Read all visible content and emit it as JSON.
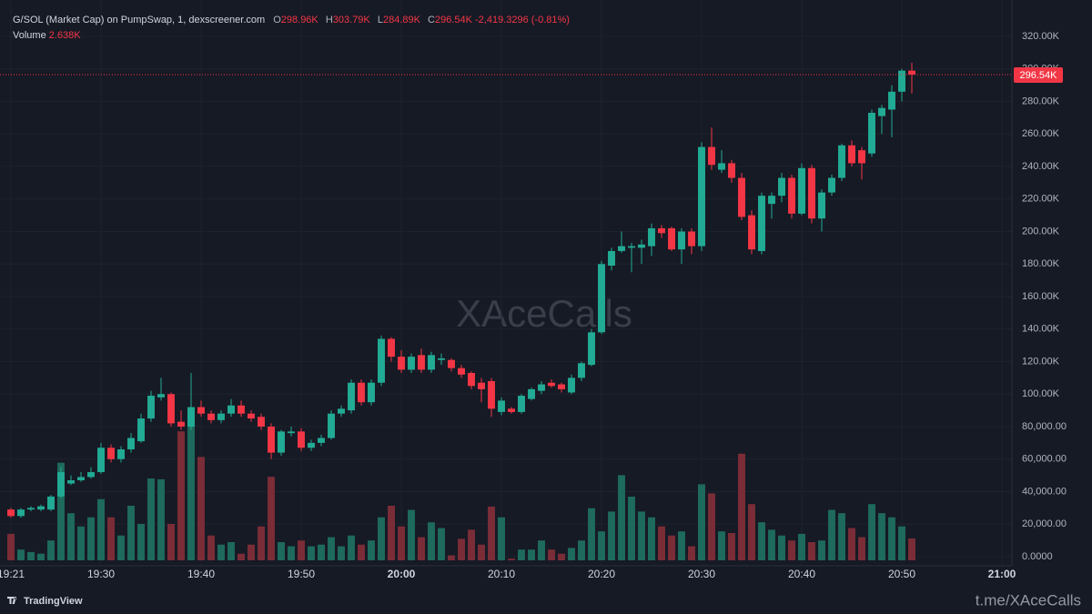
{
  "chart_data": {
    "type": "candlestick",
    "title": "G/SOL (Market Cap) on PumpSwap, 1, dexscreener.com",
    "ohlc_keys": {
      "open": "O",
      "high": "H",
      "low": "L",
      "close": "C"
    },
    "last_labels": {
      "open": "298.96K",
      "high": "303.79K",
      "low": "284.89K",
      "close": "296.54K",
      "volume": "2.638K"
    },
    "change_label": "-2,419.3296 (-0.81%)",
    "volume_title": "Volume",
    "watermark": "XAceCalls",
    "footer_left": "TradingView",
    "footer_right": "t.me/XAceCalls",
    "up_color": "#22ab94",
    "down_color": "#f23645",
    "volume_up_color": "#1e6a5c",
    "volume_down_color": "#7b2d37",
    "grid": true,
    "x": [
      "19:21",
      "19:22",
      "19:23",
      "19:24",
      "19:25",
      "19:26",
      "19:27",
      "19:28",
      "19:29",
      "19:30",
      "19:31",
      "19:32",
      "19:33",
      "19:34",
      "19:35",
      "19:36",
      "19:37",
      "19:38",
      "19:39",
      "19:40",
      "19:41",
      "19:42",
      "19:43",
      "19:44",
      "19:45",
      "19:46",
      "19:47",
      "19:48",
      "19:49",
      "19:50",
      "19:51",
      "19:52",
      "19:53",
      "19:54",
      "19:55",
      "19:56",
      "19:57",
      "19:58",
      "19:59",
      "20:00",
      "20:01",
      "20:02",
      "20:03",
      "20:04",
      "20:05",
      "20:06",
      "20:07",
      "20:08",
      "20:09",
      "20:10",
      "20:11",
      "20:12",
      "20:13",
      "20:14",
      "20:15",
      "20:16",
      "20:17",
      "20:18",
      "20:19",
      "20:20",
      "20:21",
      "20:22",
      "20:23",
      "20:24",
      "20:25",
      "20:26",
      "20:27",
      "20:28",
      "20:29",
      "20:30",
      "20:31",
      "20:32",
      "20:33",
      "20:34",
      "20:35",
      "20:36",
      "20:37",
      "20:38",
      "20:39",
      "20:40",
      "20:41",
      "20:42",
      "20:43",
      "20:44",
      "20:45",
      "20:46",
      "20:47",
      "20:48",
      "20:49",
      "20:50",
      "20:51"
    ],
    "open": [
      29000,
      25000,
      29000,
      29000,
      29000,
      37000,
      45000,
      47000,
      49000,
      52000,
      67000,
      60000,
      66000,
      71000,
      85000,
      98000,
      100000,
      83000,
      80000,
      92000,
      88000,
      84000,
      88000,
      93000,
      88000,
      86000,
      80000,
      64000,
      76000,
      77000,
      67000,
      70000,
      73000,
      88000,
      90000,
      107000,
      95000,
      107000,
      134000,
      123000,
      115000,
      124000,
      115000,
      121000,
      121000,
      116000,
      113000,
      107000,
      108000,
      89000,
      91000,
      89000,
      97000,
      102000,
      107000,
      106000,
      101000,
      110000,
      118000,
      138000,
      179000,
      188000,
      190000,
      190000,
      191000,
      202000,
      202000,
      189000,
      200000,
      191000,
      252000,
      238000,
      242000,
      233000,
      210000,
      188000,
      217000,
      222000,
      233000,
      211000,
      239000,
      208000,
      224000,
      233000,
      253000,
      250000,
      248000,
      271000,
      275000,
      286000,
      298960
    ],
    "high": [
      30000,
      30000,
      31000,
      32000,
      38000,
      55000,
      50000,
      52000,
      55000,
      70000,
      69000,
      68000,
      76000,
      88000,
      102000,
      110000,
      101000,
      90000,
      113000,
      96000,
      90000,
      90000,
      97000,
      96000,
      90000,
      88000,
      82000,
      78000,
      80000,
      79000,
      72000,
      75000,
      90000,
      93000,
      109000,
      109000,
      109000,
      136000,
      135000,
      127000,
      125000,
      128000,
      126000,
      125000,
      122000,
      118000,
      114000,
      110000,
      110000,
      98000,
      92000,
      100000,
      104000,
      108000,
      109000,
      107000,
      112000,
      120000,
      140000,
      182000,
      190000,
      200000,
      193000,
      195000,
      205000,
      204000,
      203000,
      202000,
      202000,
      255000,
      264000,
      250000,
      244000,
      236000,
      213000,
      224000,
      224000,
      236000,
      235000,
      242000,
      241000,
      226000,
      235000,
      254000,
      256000,
      252000,
      275000,
      278000,
      290000,
      300000,
      303790
    ],
    "low": [
      24000,
      24000,
      28000,
      28000,
      28000,
      36000,
      44000,
      46000,
      48000,
      51000,
      58000,
      58000,
      64000,
      70000,
      83000,
      96000,
      80000,
      78000,
      78000,
      86000,
      82000,
      82000,
      86000,
      86000,
      83000,
      78000,
      60000,
      62000,
      74000,
      65000,
      65000,
      68000,
      72000,
      86000,
      88000,
      93000,
      93000,
      105000,
      120000,
      113000,
      113000,
      113000,
      113000,
      118000,
      114000,
      110000,
      103000,
      95000,
      86000,
      87000,
      88000,
      88000,
      96000,
      100000,
      104000,
      101000,
      100000,
      108000,
      117000,
      137000,
      176000,
      187000,
      175000,
      180000,
      185000,
      196000,
      188000,
      180000,
      186000,
      188000,
      238000,
      236000,
      230000,
      207000,
      186000,
      186000,
      208000,
      218000,
      208000,
      210000,
      205000,
      200000,
      222000,
      231000,
      240000,
      232000,
      246000,
      260000,
      258000,
      280000,
      284890
    ],
    "close": [
      25000,
      29000,
      30000,
      31000,
      37000,
      52000,
      47000,
      49000,
      52000,
      67000,
      60000,
      66000,
      73000,
      85000,
      99000,
      100000,
      82000,
      80000,
      92000,
      88000,
      84000,
      88000,
      93000,
      88000,
      85000,
      80000,
      64000,
      77000,
      77000,
      67000,
      70000,
      73000,
      88000,
      91000,
      107000,
      95000,
      107000,
      134000,
      123000,
      115000,
      123000,
      115000,
      124000,
      122000,
      116000,
      112000,
      105000,
      103000,
      91000,
      96000,
      89000,
      99000,
      103000,
      106000,
      105000,
      103000,
      110000,
      119000,
      138000,
      180000,
      188000,
      191000,
      191000,
      192000,
      202000,
      199000,
      189000,
      200000,
      191000,
      252000,
      241000,
      242000,
      233000,
      209000,
      189000,
      222000,
      222000,
      233000,
      211000,
      239000,
      208000,
      224000,
      233000,
      253000,
      242000,
      242000,
      273000,
      276000,
      286000,
      298960,
      296540
    ],
    "volume": [
      3200,
      1300,
      1000,
      800,
      2400,
      11800,
      5700,
      4100,
      5200,
      7400,
      5200,
      3000,
      6600,
      4400,
      9900,
      9800,
      4400,
      15600,
      18200,
      12500,
      3000,
      1900,
      2200,
      800,
      1900,
      4100,
      10100,
      2200,
      1700,
      2400,
      1700,
      1900,
      2800,
      1700,
      3000,
      1900,
      2400,
      5200,
      6600,
      4100,
      6100,
      2800,
      4600,
      3900,
      600,
      2600,
      3700,
      1900,
      6500,
      5200,
      200,
      1300,
      1300,
      2400,
      1300,
      800,
      1500,
      2400,
      6300,
      3500,
      5900,
      10300,
      7700,
      5900,
      5200,
      4100,
      3000,
      3500,
      1700,
      9200,
      8100,
      3500,
      3300,
      12900,
      6800,
      4600,
      3700,
      3000,
      2400,
      3200,
      2200,
      2400,
      6100,
      5700,
      3900,
      2800,
      6800,
      5700,
      5200,
      4100,
      2638
    ],
    "xlim": [
      "19:20",
      "21:01"
    ],
    "xticks": [
      "19:21",
      "19:30",
      "19:40",
      "19:50",
      "20:00",
      "20:10",
      "20:20",
      "20:30",
      "20:40",
      "20:50",
      "21:00"
    ],
    "ylim": [
      -5600,
      342400
    ],
    "yticks": [
      {
        "value": 0,
        "label": "0.0000"
      },
      {
        "value": 20000,
        "label": "20,000.00"
      },
      {
        "value": 40000,
        "label": "40,000.00"
      },
      {
        "value": 60000,
        "label": "60,000.00"
      },
      {
        "value": 80000,
        "label": "80,000.00"
      },
      {
        "value": 100000,
        "label": "100.00K"
      },
      {
        "value": 120000,
        "label": "120.00K"
      },
      {
        "value": 140000,
        "label": "140.00K"
      },
      {
        "value": 160000,
        "label": "160.00K"
      },
      {
        "value": 180000,
        "label": "180.00K"
      },
      {
        "value": 200000,
        "label": "200.00K"
      },
      {
        "value": 220000,
        "label": "220.00K"
      },
      {
        "value": 240000,
        "label": "240.00K"
      },
      {
        "value": 260000,
        "label": "260.00K"
      },
      {
        "value": 280000,
        "label": "280.00K"
      },
      {
        "value": 300000,
        "label": "300.00K"
      },
      {
        "value": 320000,
        "label": "320.00K"
      }
    ],
    "volume_ylim": [
      0,
      63360
    ]
  }
}
